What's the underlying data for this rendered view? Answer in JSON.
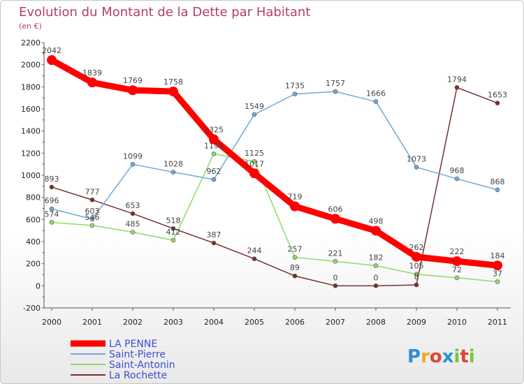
{
  "chart_data": {
    "type": "line",
    "title": "Evolution du Montant de la Dette par Habitant",
    "subtitle": "(en €)",
    "xlabel": "",
    "ylabel": "",
    "x": [
      "2000",
      "2001",
      "2002",
      "2003",
      "2004",
      "2005",
      "2006",
      "2007",
      "2008",
      "2009",
      "2010",
      "2011"
    ],
    "ylim": [
      -200,
      2200
    ],
    "yticks": [
      -200,
      0,
      200,
      400,
      600,
      800,
      1000,
      1200,
      1400,
      1600,
      1800,
      2000,
      2200
    ],
    "grid": false,
    "legend_position": "bottom-left",
    "series": [
      {
        "name": "LA PENNE",
        "color": "#ff0000",
        "values": [
          2042,
          1839,
          1769,
          1758,
          1325,
          1017,
          719,
          606,
          498,
          262,
          222,
          184
        ]
      },
      {
        "name": "Saint-Pierre",
        "color": "#6fa8d6",
        "values": [
          696,
          603,
          1099,
          1028,
          962,
          1549,
          1735,
          1757,
          1666,
          1073,
          968,
          868
        ]
      },
      {
        "name": "Saint-Antonin",
        "color": "#8fd96a",
        "values": [
          574,
          546,
          485,
          412,
          1194,
          1125,
          257,
          221,
          182,
          105,
          72,
          37
        ]
      },
      {
        "name": "La Rochette",
        "color": "#7a2e2e",
        "values": [
          893,
          777,
          653,
          518,
          387,
          244,
          89,
          0,
          0,
          8,
          1794,
          1653
        ]
      }
    ]
  },
  "logo": {
    "text": "Proxiti",
    "colors": [
      "#2f8fd8",
      "#f2a52b",
      "#e0442f",
      "#2f8fd8",
      "#7dc243",
      "#e0442f",
      "#7dc243"
    ]
  }
}
